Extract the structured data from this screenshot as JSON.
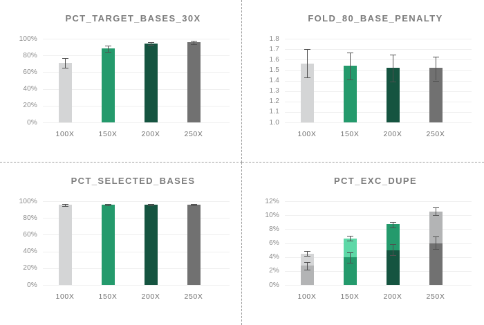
{
  "page": {
    "background": "#ffffff",
    "divider_color": "#9b9b9b",
    "grid_color": "#efefef",
    "error_bar_color": "#4f4f4f",
    "palette": {
      "light_gray": "#d4d5d6",
      "green": "#249a6c",
      "dark_green": "#155440",
      "dark_gray": "#717171"
    }
  },
  "chart_data": [
    {
      "type": "bar",
      "title": "PCT_TARGET_BASES_30X",
      "categories": [
        "100X",
        "150X",
        "200X",
        "250X"
      ],
      "y_axis": {
        "min": 0,
        "max": 100,
        "step": 20,
        "format": "percent",
        "decimals": 0
      },
      "grid": true,
      "legend": "none",
      "bars": [
        {
          "category": "100X",
          "segments": [
            {
              "value": 71,
              "color": "#d4d5d6"
            }
          ],
          "errors": [
            {
              "low": 65,
              "high": 76.5
            }
          ]
        },
        {
          "category": "150X",
          "segments": [
            {
              "value": 88.5,
              "color": "#249a6c"
            }
          ],
          "errors": [
            {
              "low": 84,
              "high": 91.5
            }
          ]
        },
        {
          "category": "200X",
          "segments": [
            {
              "value": 94,
              "color": "#155440"
            }
          ],
          "errors": [
            {
              "low": 92.5,
              "high": 96
            }
          ]
        },
        {
          "category": "250X",
          "segments": [
            {
              "value": 95.5,
              "color": "#717171"
            }
          ],
          "errors": [
            {
              "low": 93.5,
              "high": 97.5
            }
          ]
        }
      ]
    },
    {
      "type": "bar",
      "title": "FOLD_80_BASE_PENALTY",
      "categories": [
        "100X",
        "150X",
        "200X",
        "250X"
      ],
      "y_axis": {
        "min": 1.0,
        "max": 1.8,
        "step": 0.1,
        "format": "number",
        "decimals": 1
      },
      "grid": true,
      "legend": "none",
      "bars": [
        {
          "category": "100X",
          "segments": [
            {
              "value": 1.56,
              "color": "#d4d5d6"
            }
          ],
          "errors": [
            {
              "low": 1.43,
              "high": 1.7
            }
          ]
        },
        {
          "category": "150X",
          "segments": [
            {
              "value": 1.54,
              "color": "#249a6c"
            }
          ],
          "errors": [
            {
              "low": 1.41,
              "high": 1.67
            }
          ]
        },
        {
          "category": "200X",
          "segments": [
            {
              "value": 1.52,
              "color": "#155440"
            }
          ],
          "errors": [
            {
              "low": 1.39,
              "high": 1.65
            }
          ]
        },
        {
          "category": "250X",
          "segments": [
            {
              "value": 1.52,
              "color": "#717171"
            }
          ],
          "errors": [
            {
              "low": 1.4,
              "high": 1.63
            }
          ]
        }
      ]
    },
    {
      "type": "bar",
      "title": "PCT_SELECTED_BASES",
      "categories": [
        "100X",
        "150X",
        "200X",
        "250X"
      ],
      "y_axis": {
        "min": 0,
        "max": 100,
        "step": 20,
        "format": "percent",
        "decimals": 0
      },
      "grid": true,
      "legend": "none",
      "bars": [
        {
          "category": "100X",
          "segments": [
            {
              "value": 95.5,
              "color": "#d4d5d6"
            }
          ],
          "errors": [
            {
              "low": 94.3,
              "high": 96.7
            }
          ]
        },
        {
          "category": "150X",
          "segments": [
            {
              "value": 96,
              "color": "#249a6c"
            }
          ],
          "errors": [
            {
              "low": 95.2,
              "high": 96.8
            }
          ]
        },
        {
          "category": "200X",
          "segments": [
            {
              "value": 95.8,
              "color": "#155440"
            }
          ],
          "errors": [
            {
              "low": 95.2,
              "high": 96.5
            }
          ]
        },
        {
          "category": "250X",
          "segments": [
            {
              "value": 95.6,
              "color": "#717171"
            }
          ],
          "errors": [
            {
              "low": 94.8,
              "high": 96.5
            }
          ]
        }
      ]
    },
    {
      "type": "bar",
      "title": "PCT_EXC_DUPE",
      "categories": [
        "100X",
        "150X",
        "200X",
        "250X"
      ],
      "y_axis": {
        "min": 0,
        "max": 12,
        "step": 2,
        "format": "percent",
        "decimals": 0
      },
      "grid": true,
      "legend": "none",
      "bars": [
        {
          "category": "100X",
          "segments": [
            {
              "value": 2.8,
              "color": "#b3b4b5"
            },
            {
              "value": 4.5,
              "color": "#d4d5d6"
            }
          ],
          "errors": [
            {
              "low": 2.2,
              "high": 3.3
            },
            {
              "low": 4.2,
              "high": 4.9
            }
          ]
        },
        {
          "category": "150X",
          "segments": [
            {
              "value": 4.0,
              "color": "#249a6c"
            },
            {
              "value": 6.6,
              "color": "#5ed8a7"
            }
          ],
          "errors": [
            {
              "low": 3.2,
              "high": 4.7
            },
            {
              "low": 6.3,
              "high": 7.0
            }
          ]
        },
        {
          "category": "200X",
          "segments": [
            {
              "value": 5.0,
              "color": "#155440"
            },
            {
              "value": 8.7,
              "color": "#249a6c"
            }
          ],
          "errors": [
            {
              "low": 4.3,
              "high": 5.9
            },
            {
              "low": 8.2,
              "high": 9.0
            }
          ]
        },
        {
          "category": "250X",
          "segments": [
            {
              "value": 6.0,
              "color": "#717171"
            },
            {
              "value": 10.5,
              "color": "#b3b4b5"
            }
          ],
          "errors": [
            {
              "low": 5.2,
              "high": 6.9
            },
            {
              "low": 10.0,
              "high": 11.1
            }
          ]
        }
      ]
    }
  ]
}
